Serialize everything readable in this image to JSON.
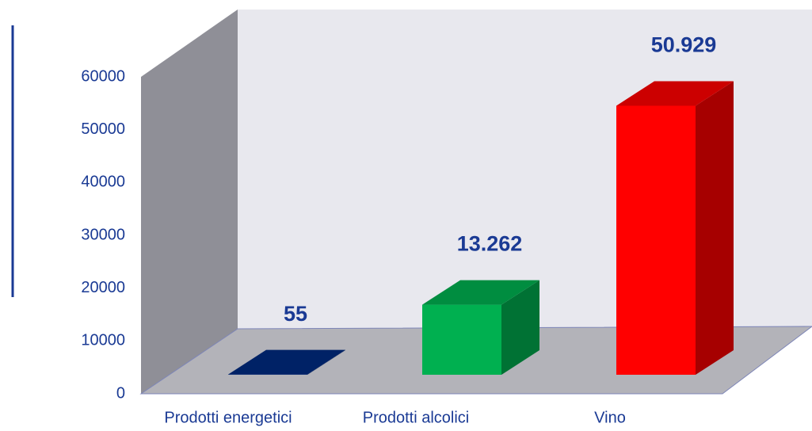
{
  "chart_data": {
    "type": "bar3d",
    "categories": [
      "Prodotti energetici",
      "Prodotti alcolici",
      "Vino"
    ],
    "values": [
      55,
      13262,
      50929
    ],
    "value_labels": [
      "55",
      "13.262",
      "50.929"
    ],
    "colors": [
      "#002b80",
      "#00b050",
      "#ff0000"
    ],
    "ylim": [
      0,
      60000
    ],
    "yticks": [
      0,
      10000,
      20000,
      30000,
      40000,
      50000,
      60000
    ]
  }
}
